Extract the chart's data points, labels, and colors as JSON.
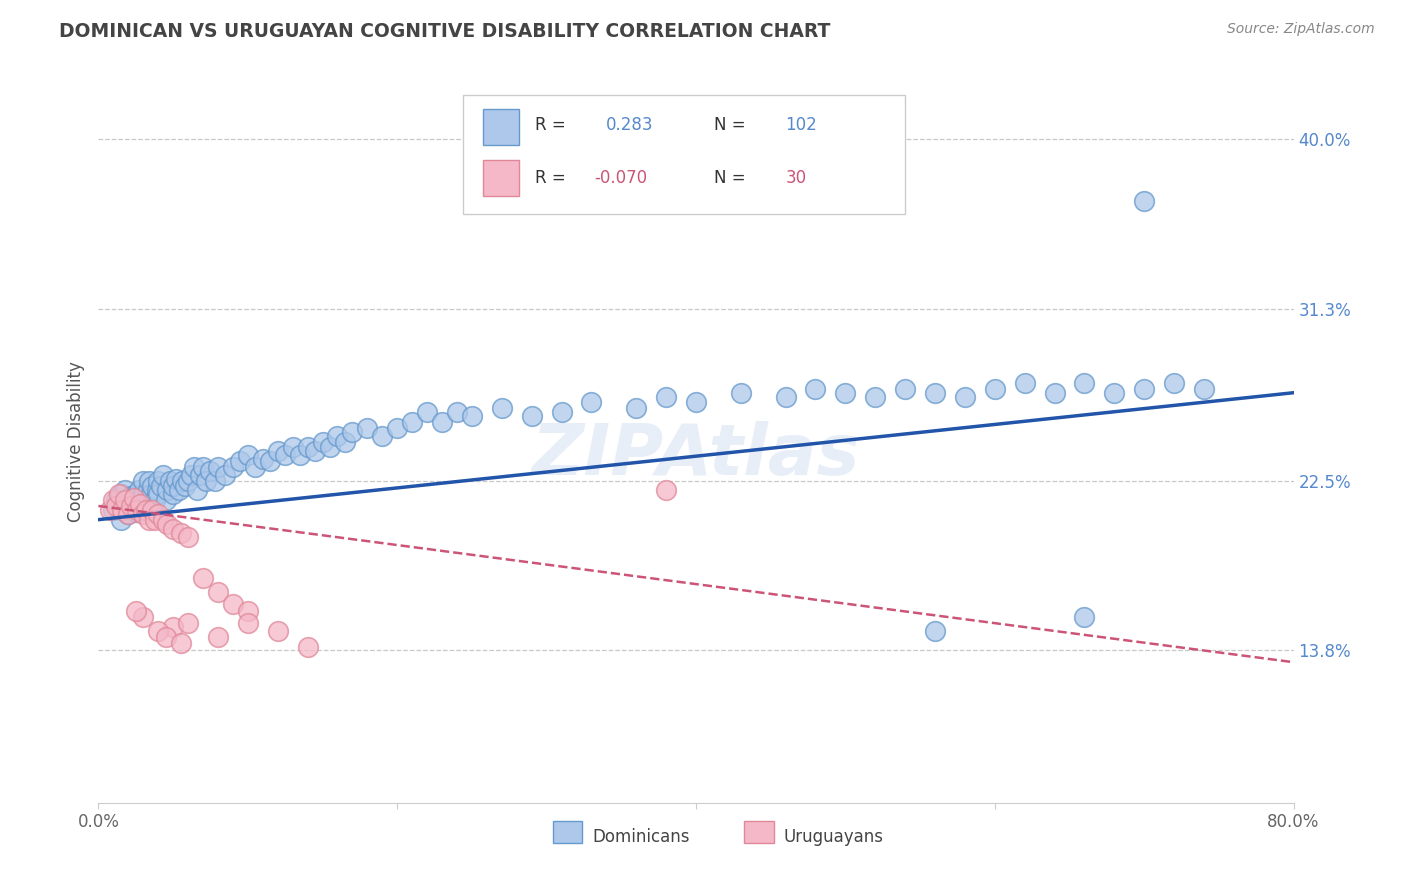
{
  "title": "DOMINICAN VS URUGUAYAN COGNITIVE DISABILITY CORRELATION CHART",
  "source_text": "Source: ZipAtlas.com",
  "ylabel": "Cognitive Disability",
  "x_min": 0.0,
  "x_max": 0.8,
  "y_min": 0.06,
  "y_max": 0.43,
  "y_ticks": [
    0.138,
    0.225,
    0.313,
    0.4
  ],
  "y_tick_labels": [
    "13.8%",
    "22.5%",
    "31.3%",
    "40.0%"
  ],
  "x_ticks": [
    0.0,
    0.2,
    0.4,
    0.6,
    0.8
  ],
  "x_tick_labels": [
    "0.0%",
    "",
    "",
    "",
    "80.0%"
  ],
  "legend_r1_label": "R = ",
  "legend_r1_val": "0.283",
  "legend_n1_label": "N =",
  "legend_n1_val": "102",
  "legend_r2_label": "R =",
  "legend_r2_val": "-0.070",
  "legend_n2_label": "N =",
  "legend_n2_val": "30",
  "dominican_color": "#adc8ea",
  "dominican_edge": "#6699cc",
  "uruguayan_color": "#f4b8c8",
  "uruguayan_edge": "#e08898",
  "trend_dominican_color": "#2255aa",
  "trend_uruguayan_color": "#cc5577",
  "background_color": "#ffffff",
  "grid_color": "#c8c8c8",
  "title_color": "#444444",
  "ytick_color": "#5588cc",
  "source_color": "#888888",
  "watermark_color": "#d0dff0",
  "dominican_points_x": [
    0.01,
    0.012,
    0.015,
    0.015,
    0.017,
    0.018,
    0.019,
    0.02,
    0.021,
    0.022,
    0.023,
    0.024,
    0.025,
    0.025,
    0.026,
    0.027,
    0.028,
    0.029,
    0.03,
    0.03,
    0.032,
    0.033,
    0.034,
    0.035,
    0.036,
    0.038,
    0.039,
    0.04,
    0.04,
    0.042,
    0.043,
    0.045,
    0.046,
    0.048,
    0.05,
    0.05,
    0.052,
    0.054,
    0.056,
    0.058,
    0.06,
    0.062,
    0.064,
    0.066,
    0.068,
    0.07,
    0.072,
    0.075,
    0.078,
    0.08,
    0.085,
    0.09,
    0.095,
    0.1,
    0.105,
    0.11,
    0.115,
    0.12,
    0.125,
    0.13,
    0.135,
    0.14,
    0.145,
    0.15,
    0.155,
    0.16,
    0.165,
    0.17,
    0.18,
    0.19,
    0.2,
    0.21,
    0.22,
    0.23,
    0.24,
    0.25,
    0.27,
    0.29,
    0.31,
    0.33,
    0.36,
    0.38,
    0.4,
    0.43,
    0.46,
    0.48,
    0.5,
    0.52,
    0.54,
    0.56,
    0.58,
    0.6,
    0.62,
    0.64,
    0.66,
    0.68,
    0.7,
    0.7,
    0.72,
    0.74,
    0.56,
    0.66
  ],
  "dominican_points_y": [
    0.21,
    0.215,
    0.205,
    0.218,
    0.212,
    0.22,
    0.215,
    0.208,
    0.213,
    0.217,
    0.21,
    0.215,
    0.209,
    0.218,
    0.212,
    0.22,
    0.215,
    0.21,
    0.218,
    0.225,
    0.215,
    0.22,
    0.225,
    0.218,
    0.222,
    0.215,
    0.22,
    0.225,
    0.218,
    0.222,
    0.228,
    0.215,
    0.22,
    0.225,
    0.218,
    0.222,
    0.226,
    0.22,
    0.225,
    0.222,
    0.225,
    0.228,
    0.232,
    0.22,
    0.228,
    0.232,
    0.225,
    0.23,
    0.225,
    0.232,
    0.228,
    0.232,
    0.235,
    0.238,
    0.232,
    0.236,
    0.235,
    0.24,
    0.238,
    0.242,
    0.238,
    0.242,
    0.24,
    0.245,
    0.242,
    0.248,
    0.245,
    0.25,
    0.252,
    0.248,
    0.252,
    0.255,
    0.26,
    0.255,
    0.26,
    0.258,
    0.262,
    0.258,
    0.26,
    0.265,
    0.262,
    0.268,
    0.265,
    0.27,
    0.268,
    0.272,
    0.27,
    0.268,
    0.272,
    0.27,
    0.268,
    0.272,
    0.275,
    0.27,
    0.275,
    0.27,
    0.368,
    0.272,
    0.275,
    0.272,
    0.148,
    0.155
  ],
  "uruguayan_points_x": [
    0.008,
    0.01,
    0.012,
    0.014,
    0.016,
    0.018,
    0.02,
    0.022,
    0.024,
    0.026,
    0.028,
    0.03,
    0.032,
    0.034,
    0.036,
    0.038,
    0.04,
    0.043,
    0.046,
    0.05,
    0.055,
    0.06,
    0.07,
    0.08,
    0.09,
    0.1,
    0.1,
    0.12,
    0.14,
    0.38
  ],
  "uruguayan_points_y": [
    0.21,
    0.215,
    0.212,
    0.218,
    0.21,
    0.215,
    0.208,
    0.212,
    0.216,
    0.21,
    0.213,
    0.208,
    0.21,
    0.205,
    0.21,
    0.205,
    0.208,
    0.205,
    0.203,
    0.2,
    0.198,
    0.196,
    0.175,
    0.168,
    0.162,
    0.158,
    0.152,
    0.148,
    0.14,
    0.22
  ],
  "uruguayan_extra_x": [
    0.03,
    0.05,
    0.08,
    0.06,
    0.04,
    0.025,
    0.045,
    0.055
  ],
  "uruguayan_extra_y": [
    0.155,
    0.15,
    0.145,
    0.152,
    0.148,
    0.158,
    0.145,
    0.142
  ],
  "trend_dom_x0": 0.0,
  "trend_dom_x1": 0.8,
  "trend_dom_y0": 0.205,
  "trend_dom_y1": 0.27,
  "trend_uru_x0": 0.0,
  "trend_uru_x1": 0.8,
  "trend_uru_y0": 0.212,
  "trend_uru_y1": 0.132
}
